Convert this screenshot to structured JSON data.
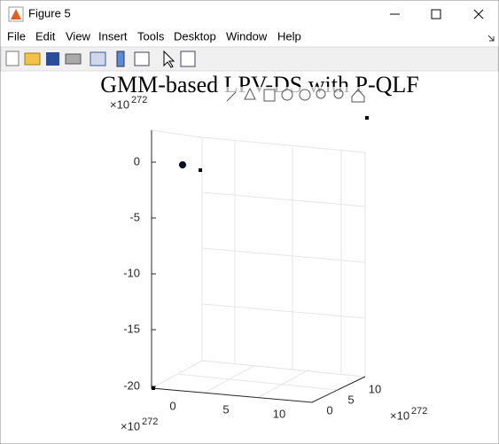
{
  "window": {
    "title": "Figure 5"
  },
  "menu": [
    "File",
    "Edit",
    "View",
    "Insert",
    "Tools",
    "Desktop",
    "Window",
    "Help"
  ],
  "figure": {
    "title": "GMM-based LPV-DS with P-QLF",
    "z_ticks": [
      "0",
      "-5",
      "-10",
      "-15",
      "-20"
    ],
    "x_ticks": [
      "0",
      "5",
      "10"
    ],
    "y_ticks": [
      "0",
      "5",
      "10"
    ],
    "exponent_labels": [
      {
        "base": "×10",
        "power": "272"
      },
      {
        "base": "×10",
        "power": "272"
      },
      {
        "base": "×10",
        "power": "272"
      }
    ]
  }
}
